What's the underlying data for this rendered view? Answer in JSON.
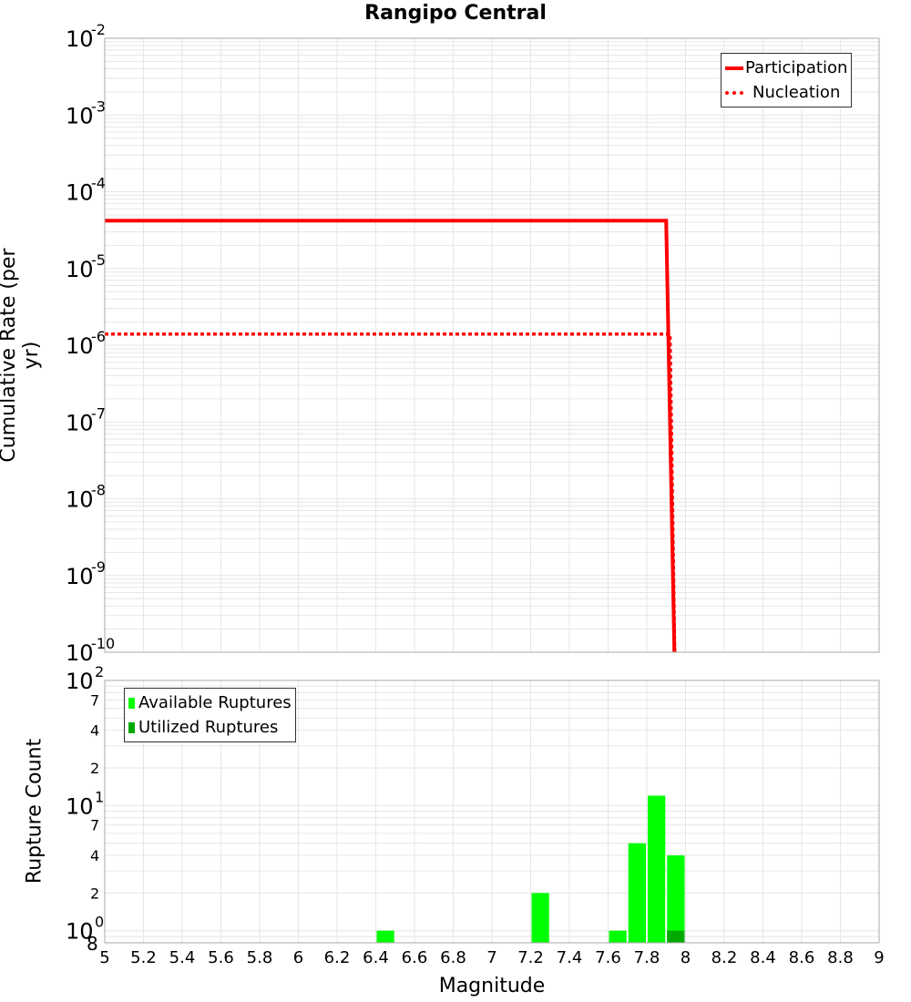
{
  "title": "Rangipo Central",
  "top_panel": {
    "ylabel": "Cumulative Rate (per yr)",
    "legend": [
      {
        "label": "Participation",
        "style": "solid",
        "color": "#ff0000"
      },
      {
        "label": "Nucleation",
        "style": "dotted",
        "color": "#ff0000"
      }
    ]
  },
  "bottom_panel": {
    "ylabel": "Rupture Count",
    "legend": [
      {
        "label": "Available Ruptures",
        "color": "#00ff00"
      },
      {
        "label": "Utilized Ruptures",
        "color": "#00aa00"
      }
    ]
  },
  "xlabel": "Magnitude",
  "colors": {
    "participation": "#ff0000",
    "nucleation": "#ff0000",
    "available": "#00ff00",
    "utilized": "#00aa00",
    "grid": "#e6e6e6",
    "axis": "#aaaaaa"
  },
  "chart_data": [
    {
      "type": "line",
      "title": "Rangipo Central",
      "xlabel": "Magnitude",
      "ylabel": "Cumulative Rate (per yr)",
      "yscale": "log",
      "xlim": [
        5,
        9
      ],
      "ylim": [
        1e-10,
        0.01
      ],
      "xticks": [
        5,
        5.2,
        5.4,
        5.6,
        5.8,
        6,
        6.2,
        6.4,
        6.6,
        6.8,
        7,
        7.2,
        7.4,
        7.6,
        7.8,
        8,
        8.2,
        8.4,
        8.6,
        8.8,
        9
      ],
      "yticks": [
        1e-10,
        1e-09,
        1e-08,
        1e-07,
        1e-06,
        1e-05,
        0.0001,
        0.001,
        0.01
      ],
      "ytick_labels": [
        "10^-10",
        "10^-9",
        "10^-8",
        "10^-7",
        "10^-6",
        "10^-5",
        "10^-4",
        "10^-3",
        "10^-2"
      ],
      "legend_position": "upper right",
      "grid": true,
      "series": [
        {
          "name": "Participation",
          "style": "solid",
          "x": [
            5.0,
            7.9,
            7.95
          ],
          "values": [
            4.2e-05,
            4.2e-05,
            1e-11
          ]
        },
        {
          "name": "Nucleation",
          "style": "dotted",
          "x": [
            5.0,
            7.92,
            7.95
          ],
          "values": [
            1.4e-06,
            1.4e-06,
            1e-11
          ]
        }
      ]
    },
    {
      "type": "bar",
      "xlabel": "Magnitude",
      "ylabel": "Rupture Count",
      "yscale": "log",
      "xlim": [
        5,
        9
      ],
      "ylim": [
        0.8,
        100
      ],
      "yticks": [
        0.8,
        1,
        2,
        4,
        7,
        10,
        20,
        40,
        70,
        100
      ],
      "ytick_labels": [
        "8",
        "10^0",
        "2",
        "4",
        "7",
        "10^1",
        "2",
        "4",
        "7",
        "10^2"
      ],
      "bin_width": 0.1,
      "legend_position": "upper left",
      "grid": true,
      "categories": [
        6.45,
        7.25,
        7.65,
        7.75,
        7.85,
        7.95
      ],
      "series": [
        {
          "name": "Available Ruptures",
          "values": [
            1,
            2,
            1,
            5,
            12,
            4
          ]
        },
        {
          "name": "Utilized Ruptures",
          "values": [
            0,
            0,
            0,
            0,
            0,
            1
          ]
        }
      ]
    }
  ]
}
